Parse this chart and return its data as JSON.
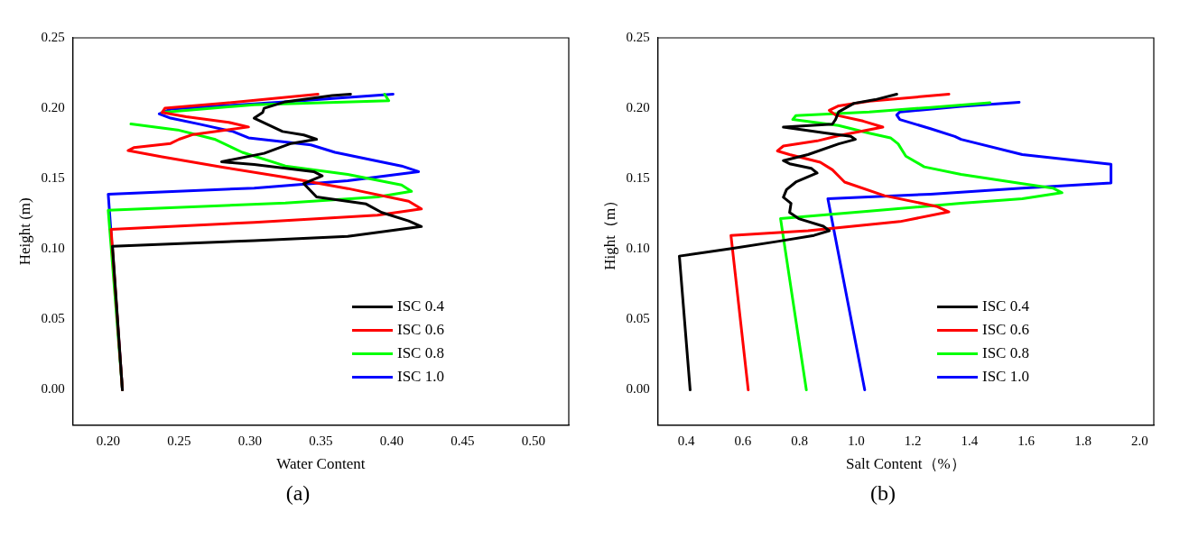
{
  "chart_data": [
    {
      "type": "line",
      "xlabel": "Water Content",
      "ylabel": "Height (m)",
      "annotations": [
        "(a)"
      ],
      "xlim": [
        0.175,
        0.525
      ],
      "ylim": [
        -0.025,
        0.25
      ],
      "xticks": [
        {
          "value": 0.2,
          "label": "0.20"
        },
        {
          "value": 0.25,
          "label": "0.25"
        },
        {
          "value": 0.3,
          "label": "0.30"
        },
        {
          "value": 0.35,
          "label": "0.35"
        },
        {
          "value": 0.4,
          "label": "0.40"
        },
        {
          "value": 0.45,
          "label": "0.45"
        },
        {
          "value": 0.5,
          "label": "0.50"
        }
      ],
      "yticks": [
        {
          "value": 0,
          "label": "0.00"
        },
        {
          "value": 0.05,
          "label": "0.05"
        },
        {
          "value": 0.1,
          "label": "0.10"
        },
        {
          "value": 0.15,
          "label": "0.15"
        },
        {
          "value": 0.2,
          "label": "0.20"
        },
        {
          "value": 0.25,
          "label": "0.25"
        }
      ],
      "grid": false,
      "legend": "bottom right",
      "marker": "none",
      "line_style": "solid",
      "series": [
        {
          "name": "ISC 0.4",
          "color": "#000000",
          "x": [
            0.21,
            0.203,
            0.303,
            0.369,
            0.421,
            0.412,
            0.393,
            0.382,
            0.347,
            0.338,
            0.351,
            0.345,
            0.303,
            0.28,
            0.31,
            0.329,
            0.347,
            0.338,
            0.323,
            0.303,
            0.309,
            0.31,
            0.325,
            0.358,
            0.371
          ],
          "values": [
            0,
            0.102,
            0.106,
            0.109,
            0.116,
            0.12,
            0.126,
            0.132,
            0.137,
            0.1465,
            0.152,
            0.155,
            0.16,
            0.162,
            0.168,
            0.175,
            0.178,
            0.181,
            0.1835,
            0.193,
            0.197,
            0.2,
            0.2046,
            0.209,
            0.21
          ]
        },
        {
          "name": "ISC 0.6",
          "color": "#ff0000",
          "x": [
            0.21,
            0.202,
            0.303,
            0.39,
            0.421,
            0.412,
            0.369,
            0.325,
            0.2815,
            0.238,
            0.214,
            0.218,
            0.244,
            0.25,
            0.26,
            0.299,
            0.285,
            0.255,
            0.238,
            0.24,
            0.2815,
            0.348
          ],
          "values": [
            0,
            0.114,
            0.119,
            0.124,
            0.1285,
            0.134,
            0.143,
            0.151,
            0.158,
            0.1655,
            0.17,
            0.172,
            0.175,
            0.178,
            0.1814,
            0.1867,
            0.19,
            0.194,
            0.197,
            0.2,
            0.2036,
            0.21
          ]
        },
        {
          "name": "ISC 0.8",
          "color": "#00ff00",
          "x": [
            0.21,
            0.2,
            0.325,
            0.39,
            0.414,
            0.407,
            0.369,
            0.325,
            0.2946,
            0.275,
            0.249,
            0.216,
            0.23,
            0.238,
            0.303,
            0.398,
            0.395
          ],
          "values": [
            0,
            0.1275,
            0.1327,
            0.137,
            0.141,
            0.1455,
            0.153,
            0.159,
            0.1687,
            0.178,
            0.1846,
            0.1888,
            null,
            0.197,
            0.2025,
            0.2053,
            0.21
          ]
        },
        {
          "name": "ISC 1.0",
          "color": "#0000ff",
          "x": [
            0.21,
            0.2,
            0.303,
            0.369,
            0.419,
            0.407,
            0.38,
            0.36,
            0.343,
            0.299,
            0.288,
            0.264,
            0.244,
            0.236,
            0.244,
            0.325,
            0.401
          ],
          "values": [
            0,
            0.139,
            0.1433,
            0.1486,
            0.155,
            0.159,
            0.1645,
            0.1687,
            0.174,
            0.179,
            0.1835,
            0.1888,
            0.193,
            0.196,
            0.1994,
            0.2046,
            0.21
          ]
        }
      ]
    },
    {
      "type": "line",
      "xlabel": "Salt Content（%）",
      "ylabel": "Hight（m）",
      "annotations": [
        "(b)"
      ],
      "xlim": [
        0.3,
        2.05
      ],
      "ylim": [
        -0.025,
        0.25
      ],
      "xticks": [
        {
          "value": 0.4,
          "label": "0.4"
        },
        {
          "value": 0.6,
          "label": "0.6"
        },
        {
          "value": 0.8,
          "label": "0.8"
        },
        {
          "value": 1,
          "label": "1.0"
        },
        {
          "value": 1.2,
          "label": "1.2"
        },
        {
          "value": 1.4,
          "label": "1.4"
        },
        {
          "value": 1.6,
          "label": "1.6"
        },
        {
          "value": 1.8,
          "label": "1.8"
        },
        {
          "value": 2,
          "label": "2.0"
        }
      ],
      "yticks": [
        {
          "value": 0,
          "label": "0.00"
        },
        {
          "value": 0.05,
          "label": "0.05"
        },
        {
          "value": 0.1,
          "label": "0.10"
        },
        {
          "value": 0.15,
          "label": "0.15"
        },
        {
          "value": 0.2,
          "label": "0.20"
        },
        {
          "value": 0.25,
          "label": "0.25"
        }
      ],
      "grid": false,
      "legend": "bottom right",
      "marker": "none",
      "line_style": "solid",
      "series": [
        {
          "name": "ISC 0.4",
          "color": "#000000",
          "x": [
            0.414,
            0.376,
            0.56,
            0.722,
            0.851,
            0.905,
            0.884,
            0.797,
            0.765,
            0.77,
            0.743,
            0.754,
            0.787,
            0.862,
            0.841,
            0.765,
            0.743,
            0.83,
            0.938,
            0.997,
            0.981,
            0.895,
            0.743,
            0.916,
            0.927,
            0.938,
            0.992,
            1.067,
            1.143
          ],
          "values": [
            0,
            0.095,
            0.1004,
            0.1054,
            0.1097,
            0.113,
            0.1162,
            0.1216,
            0.126,
            0.1325,
            0.1368,
            0.1422,
            0.1476,
            0.154,
            0.1574,
            0.1606,
            0.1628,
            0.1671,
            0.1747,
            0.1779,
            0.18,
            0.1823,
            0.1866,
            0.1887,
            0.192,
            0.1974,
            0.2035,
            0.2061,
            0.21
          ]
        },
        {
          "name": "ISC 0.6",
          "color": "#ff0000",
          "x": [
            0.619,
            0.558,
            0.83,
            1.154,
            1.327,
            1.283,
            1.1,
            0.959,
            0.916,
            0.873,
            0.765,
            0.722,
            0.743,
            0.862,
            0.938,
            1.094,
            1.024,
            0.927,
            0.905,
            0.938,
            1.046,
            1.327
          ],
          "values": [
            0,
            0.1097,
            0.113,
            0.1195,
            0.1264,
            0.1303,
            0.1379,
            0.1476,
            0.1563,
            0.1617,
            0.1671,
            0.1697,
            0.1732,
            0.1768,
            0.1805,
            0.1866,
            0.1909,
            0.1952,
            0.1985,
            0.2017,
            0.205,
            0.21
          ]
        },
        {
          "name": "ISC 0.8",
          "color": "#00ff00",
          "x": [
            0.824,
            0.733,
            1.046,
            1.37,
            1.586,
            1.726,
            1.694,
            1.586,
            1.37,
            1.24,
            1.175,
            1.148,
            1.121,
            1.046,
            0.938,
            0.776,
            0.787,
            1.046,
            1.262,
            1.472
          ],
          "values": [
            0,
            0.1216,
            0.127,
            0.1325,
            0.1357,
            0.14,
            0.1433,
            0.1465,
            0.153,
            0.1584,
            0.166,
            0.1747,
            0.179,
            0.1823,
            0.1877,
            0.192,
            0.1948,
            0.1974,
            0.2006,
            0.2039
          ]
        },
        {
          "name": "ISC 1.0",
          "color": "#0000ff",
          "x": [
            1.03,
            0.9,
            1.262,
            1.586,
            1.899,
            1.899,
            1.586,
            1.37,
            1.348,
            1.262,
            1.154,
            1.143,
            1.154,
            1.37,
            1.575
          ],
          "values": [
            0,
            0.1357,
            0.139,
            0.1433,
            0.147,
            0.1602,
            0.1671,
            0.1779,
            0.18,
            0.1855,
            0.192,
            0.1952,
            0.1974,
            0.2013,
            0.2043
          ]
        }
      ]
    }
  ]
}
